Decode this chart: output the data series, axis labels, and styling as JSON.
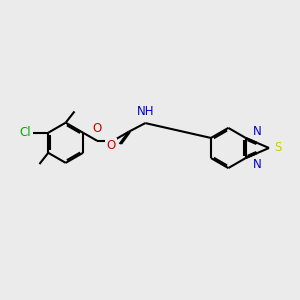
{
  "background_color": "#ebebeb",
  "bond_color": "#000000",
  "bond_width": 1.5,
  "atom_colors": {
    "N": "#0000cc",
    "O": "#cc0000",
    "S": "#cccc00",
    "Cl": "#00aa00"
  },
  "font_size": 8.5,
  "xlim": [
    -3.8,
    3.6
  ],
  "ylim": [
    -1.6,
    1.6
  ]
}
